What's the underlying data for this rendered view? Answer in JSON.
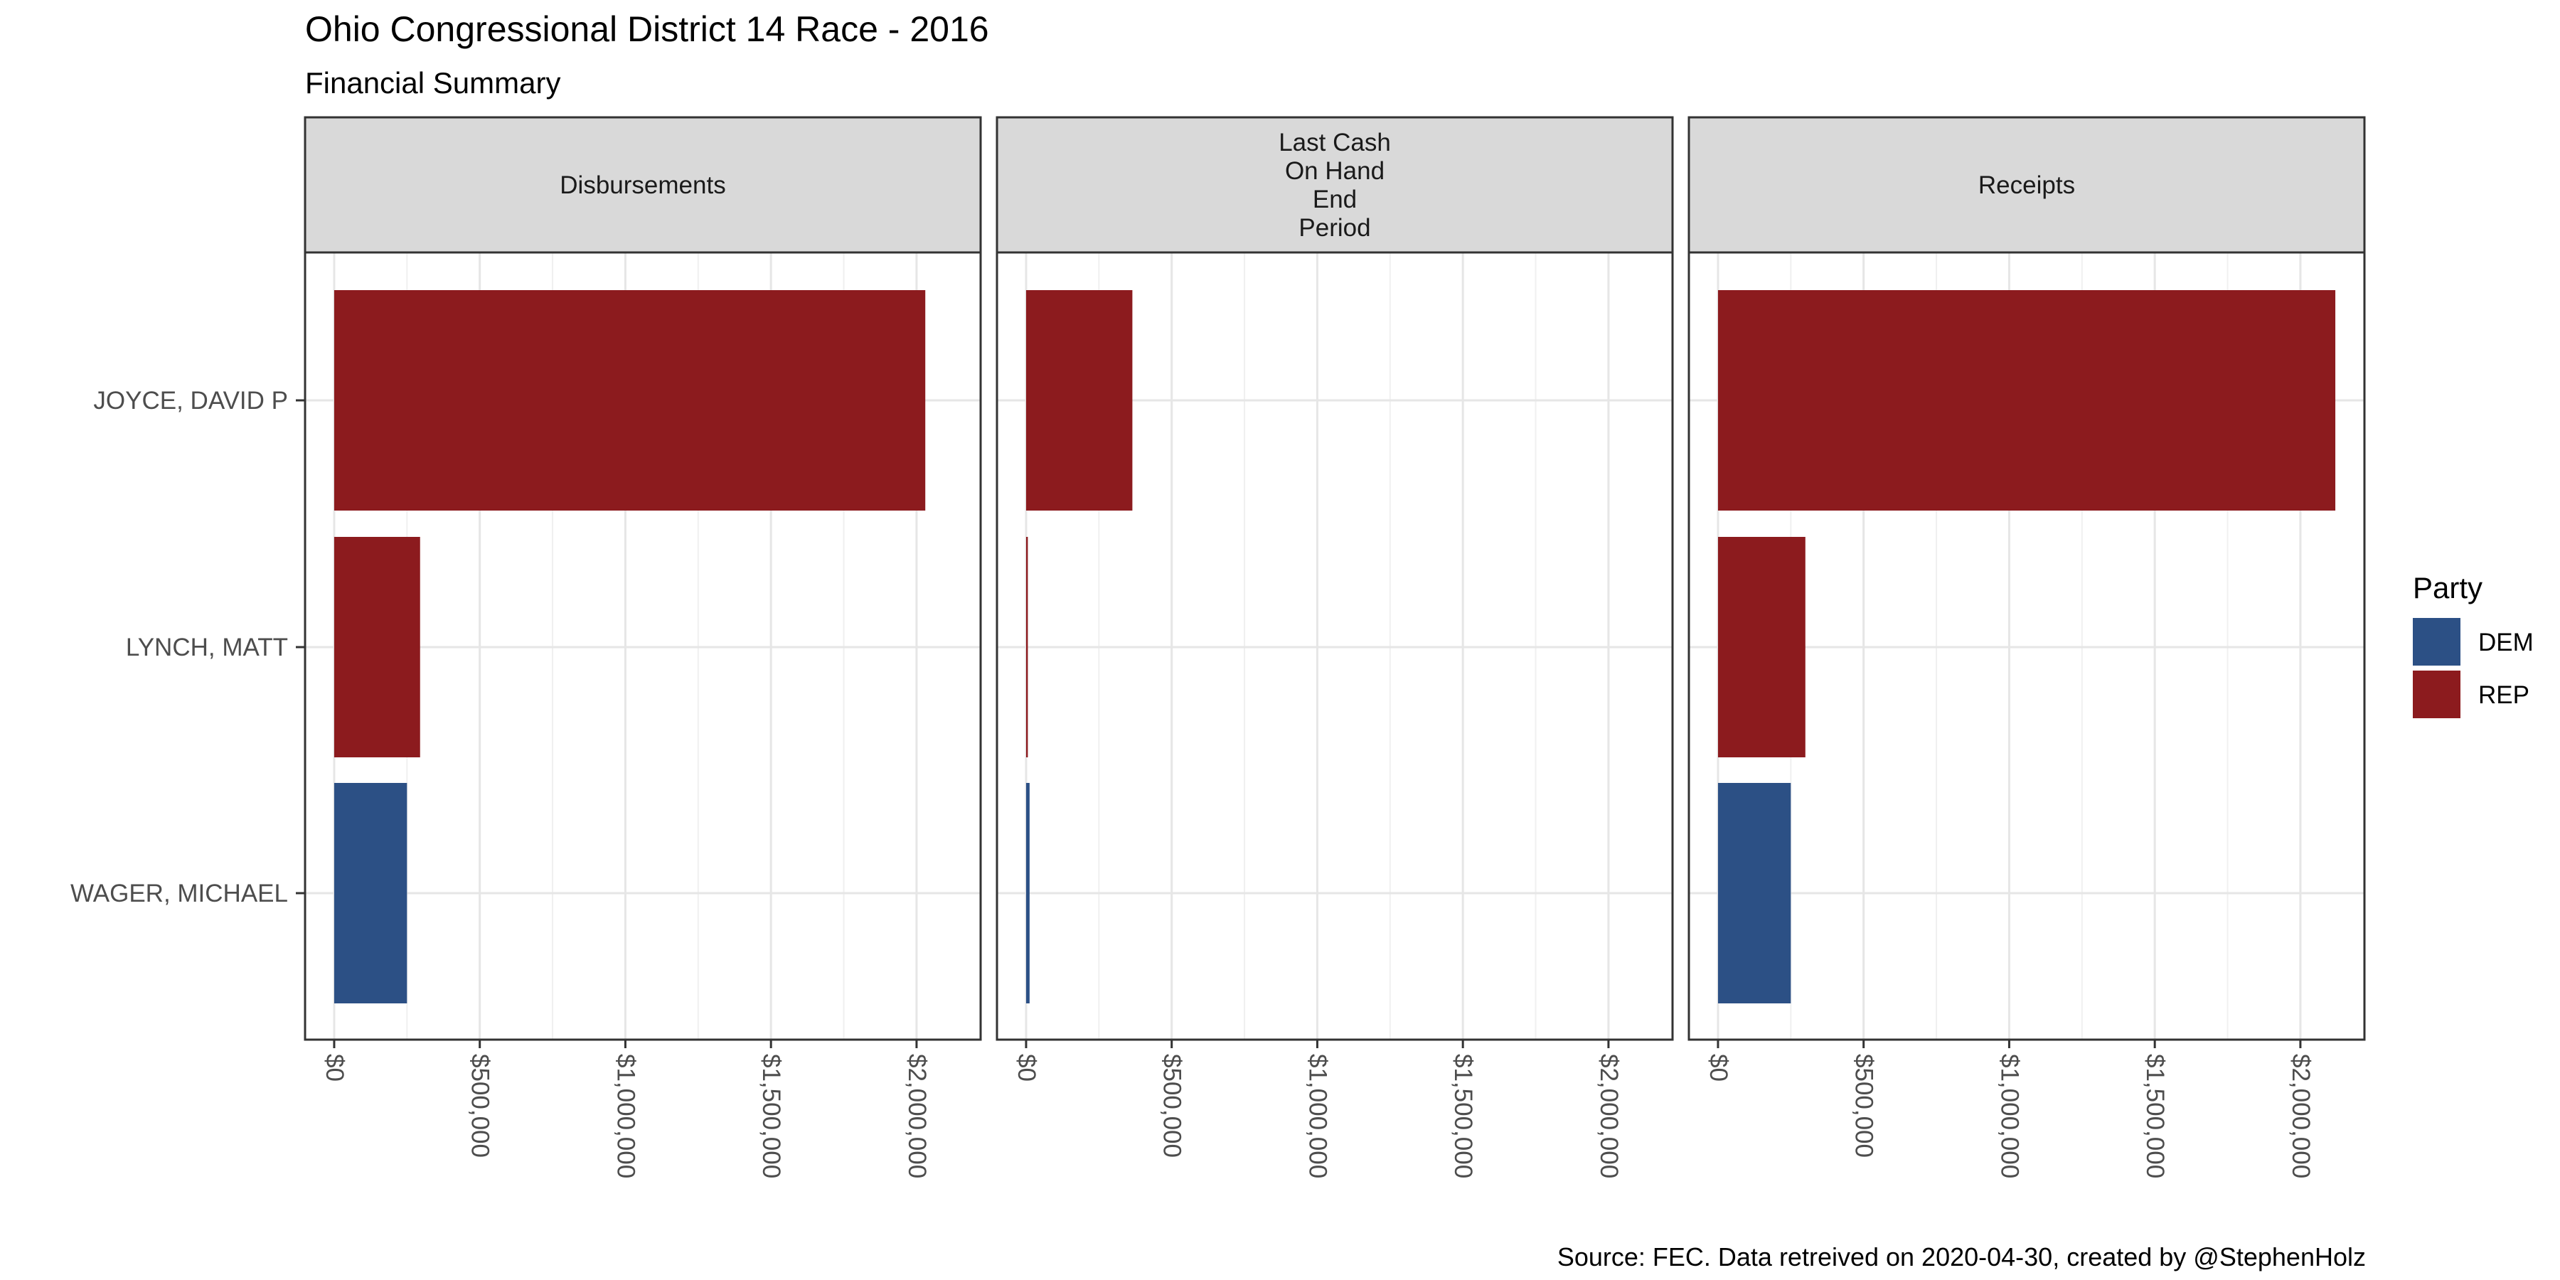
{
  "chart_data": {
    "type": "bar",
    "orientation": "horizontal",
    "title": "Ohio Congressional District 14 Race - 2016",
    "subtitle": "Financial Summary",
    "caption": "Source: FEC. Data retreived on 2020-04-30, created by @StephenHolz",
    "categories": [
      "JOYCE, DAVID P",
      "LYNCH, MATT",
      "WAGER, MICHAEL"
    ],
    "category_party": [
      "REP",
      "REP",
      "DEM"
    ],
    "facets": [
      {
        "label_lines": [
          "Disbursements"
        ],
        "values": [
          2030000,
          295000,
          250000
        ]
      },
      {
        "label_lines": [
          "Last Cash",
          "On Hand",
          "End",
          "Period"
        ],
        "values": [
          365000,
          6000,
          12000
        ]
      },
      {
        "label_lines": [
          "Receipts"
        ],
        "values": [
          2120000,
          300000,
          250000
        ]
      }
    ],
    "x_ticks": [
      0,
      500000,
      1000000,
      1500000,
      2000000
    ],
    "x_tick_labels": [
      "$0",
      "$500,000",
      "$1,000,000",
      "$1,500,000",
      "$2,000,000"
    ],
    "xlim": [
      -100000,
      2220000
    ],
    "grid": true,
    "legend": {
      "title": "Party",
      "position": "right",
      "entries": [
        {
          "name": "DEM",
          "color": "#2c5085"
        },
        {
          "name": "REP",
          "color": "#8c1b1e"
        }
      ]
    }
  }
}
